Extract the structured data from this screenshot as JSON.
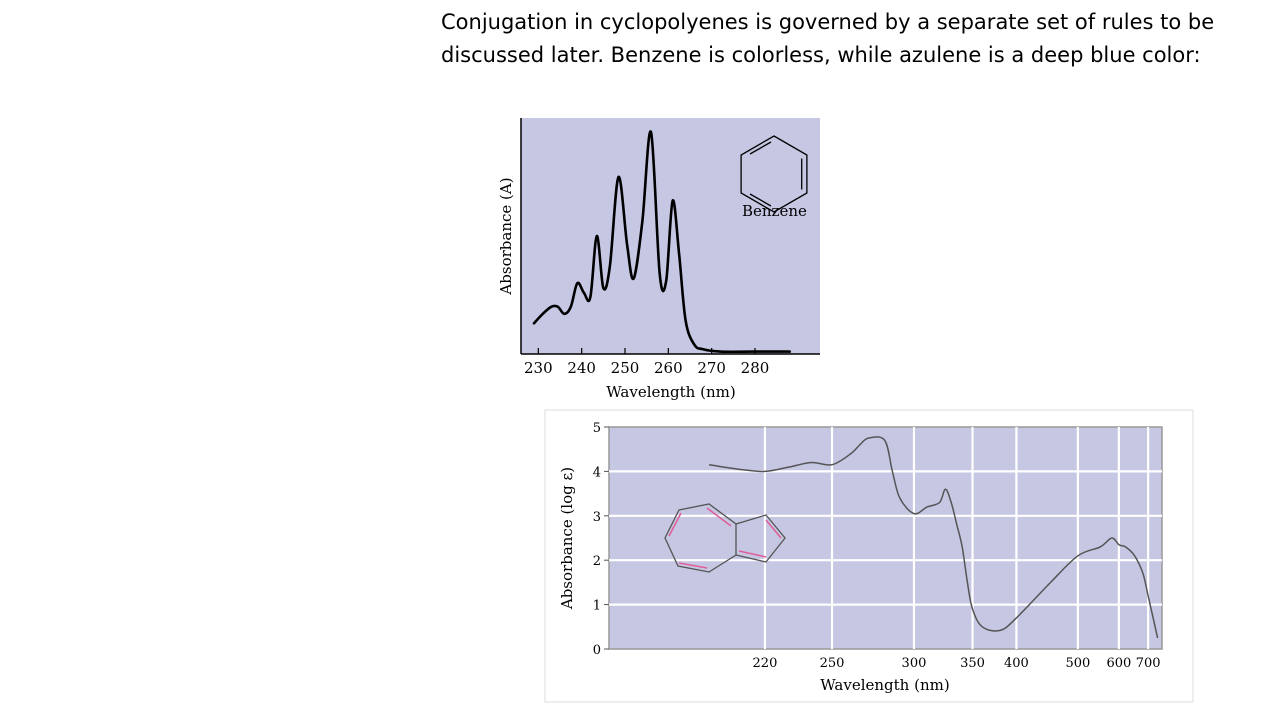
{
  "slide": {
    "text_line1": "Conjugation in cyclopolyenes is governed by a separate set of rules to be",
    "text_line2": "discussed later. Benzene is colorless, while azulene is a deep blue color:"
  },
  "colors": {
    "plot_background": "#c5c7e3",
    "curve": "#000000",
    "azulene_curve": "#555555",
    "azulene_double_bonds": "#e0609a",
    "grid": "#ffffff"
  },
  "chart_data": [
    {
      "type": "line",
      "title": "",
      "xlabel": "Wavelength (nm)",
      "ylabel": "Absorbance (A)",
      "inset_label": "Benzene",
      "inset_icon": "benzene-ring-icon",
      "xlim": [
        226,
        295
      ],
      "ylim": [
        0,
        1
      ],
      "x_ticks": [
        230,
        240,
        250,
        260,
        270,
        280
      ],
      "y_ticks": [],
      "grid": false,
      "series": [
        {
          "x": [
            229,
            231,
            233,
            234.5,
            236,
            237.5,
            239,
            240.5,
            242,
            243.5,
            245,
            246.5,
            248.5,
            250.5,
            252,
            254,
            256,
            258,
            259.5,
            261,
            262.5,
            264,
            266,
            268,
            272,
            280,
            288
          ],
          "y": [
            0.13,
            0.17,
            0.2,
            0.2,
            0.17,
            0.2,
            0.3,
            0.26,
            0.24,
            0.5,
            0.28,
            0.37,
            0.75,
            0.46,
            0.32,
            0.56,
            0.94,
            0.34,
            0.31,
            0.65,
            0.42,
            0.14,
            0.04,
            0.02,
            0.01,
            0.01,
            0.01
          ]
        }
      ]
    },
    {
      "type": "line",
      "title": "",
      "xlabel": "Wavelength (nm)",
      "ylabel": "Absorbance (log ε)",
      "inset_icon": "azulene-structure-icon",
      "x_scale": "reciprocal",
      "xlim": [
        172,
        760
      ],
      "ylim": [
        0,
        5
      ],
      "x_ticks": [
        220,
        250,
        300,
        350,
        400,
        500,
        600,
        700
      ],
      "y_ticks": [
        0,
        1,
        2,
        3,
        4,
        5
      ],
      "grid": true,
      "series": [
        {
          "x": [
            200,
            210,
            220,
            230,
            240,
            250,
            260,
            265,
            270,
            280,
            285,
            290,
            300,
            310,
            320,
            325,
            330,
            335,
            340,
            345,
            350,
            360,
            380,
            400,
            450,
            500,
            550,
            580,
            600,
            620,
            650,
            680,
            700,
            740
          ],
          "y": [
            4.15,
            4.05,
            4.0,
            4.1,
            4.2,
            4.15,
            4.4,
            4.6,
            4.75,
            4.7,
            4.0,
            3.4,
            3.05,
            3.2,
            3.3,
            3.6,
            3.3,
            2.8,
            2.3,
            1.5,
            0.9,
            0.5,
            0.42,
            0.7,
            1.5,
            2.1,
            2.3,
            2.5,
            2.35,
            2.3,
            2.1,
            1.7,
            1.2,
            0.25
          ]
        }
      ]
    }
  ]
}
